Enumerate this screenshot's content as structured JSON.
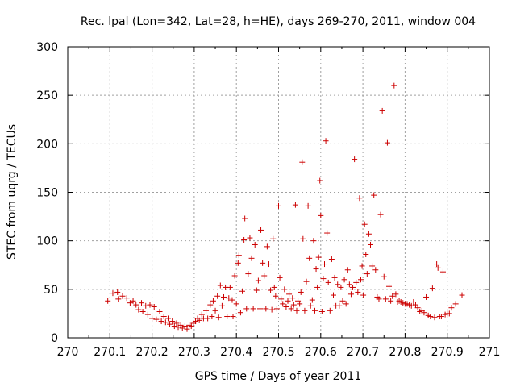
{
  "chart_data": {
    "type": "scatter",
    "title": "Rec. lpal (Lon=342, Lat=28, h=HE), days 269-270, 2011, window 004",
    "xlabel": "GPS time / Days of year 2011",
    "ylabel": "STEC from uqrg / TECUs",
    "xlim": [
      270,
      271
    ],
    "ylim": [
      0,
      300
    ],
    "x_ticks": [
      270,
      270.1,
      270.2,
      270.3,
      270.4,
      270.5,
      270.6,
      270.7,
      270.8,
      270.9,
      271
    ],
    "x_tick_labels": [
      "270",
      "270.1",
      "270.2",
      "270.3",
      "270.4",
      "270.5",
      "270.6",
      "270.7",
      "270.8",
      "270.9",
      "271"
    ],
    "y_ticks": [
      0,
      50,
      100,
      150,
      200,
      250,
      300
    ],
    "y_tick_labels": [
      "0",
      "50",
      "100",
      "150",
      "200",
      "250",
      "300"
    ],
    "grid": true,
    "marker": "+",
    "color": "#cc0000",
    "points": [
      [
        270.095,
        38
      ],
      [
        270.107,
        46
      ],
      [
        270.118,
        47
      ],
      [
        270.12,
        40
      ],
      [
        270.13,
        43
      ],
      [
        270.14,
        41
      ],
      [
        270.148,
        36
      ],
      [
        270.155,
        38
      ],
      [
        270.162,
        34
      ],
      [
        270.168,
        29
      ],
      [
        270.175,
        36
      ],
      [
        270.178,
        27
      ],
      [
        270.185,
        33
      ],
      [
        270.19,
        24
      ],
      [
        270.195,
        34
      ],
      [
        270.2,
        20
      ],
      [
        270.205,
        32
      ],
      [
        270.21,
        19
      ],
      [
        270.218,
        27
      ],
      [
        270.222,
        17
      ],
      [
        270.228,
        22
      ],
      [
        270.232,
        16
      ],
      [
        270.238,
        20
      ],
      [
        270.242,
        14
      ],
      [
        270.248,
        17
      ],
      [
        270.253,
        12
      ],
      [
        270.258,
        15
      ],
      [
        270.262,
        11
      ],
      [
        270.268,
        13
      ],
      [
        270.272,
        10
      ],
      [
        270.278,
        12
      ],
      [
        270.283,
        9
      ],
      [
        270.288,
        13
      ],
      [
        270.293,
        12
      ],
      [
        270.298,
        15
      ],
      [
        270.303,
        17
      ],
      [
        270.308,
        20
      ],
      [
        270.312,
        18
      ],
      [
        270.318,
        24
      ],
      [
        270.322,
        20
      ],
      [
        270.328,
        28
      ],
      [
        270.332,
        20
      ],
      [
        270.338,
        34
      ],
      [
        270.342,
        22
      ],
      [
        270.345,
        38
      ],
      [
        270.35,
        28
      ],
      [
        270.355,
        43
      ],
      [
        270.358,
        21
      ],
      [
        270.362,
        54
      ],
      [
        270.366,
        33
      ],
      [
        270.37,
        42
      ],
      [
        270.374,
        52
      ],
      [
        270.378,
        22
      ],
      [
        270.382,
        41
      ],
      [
        270.385,
        52
      ],
      [
        270.39,
        39
      ],
      [
        270.392,
        22
      ],
      [
        270.396,
        64
      ],
      [
        270.4,
        35
      ],
      [
        270.404,
        77
      ],
      [
        270.406,
        85
      ],
      [
        270.41,
        26
      ],
      [
        270.414,
        48
      ],
      [
        270.418,
        101
      ],
      [
        270.42,
        123
      ],
      [
        270.424,
        30
      ],
      [
        270.428,
        66
      ],
      [
        270.432,
        103
      ],
      [
        270.436,
        82
      ],
      [
        270.44,
        30
      ],
      [
        270.444,
        96
      ],
      [
        270.448,
        49
      ],
      [
        270.452,
        59
      ],
      [
        270.456,
        30
      ],
      [
        270.458,
        111
      ],
      [
        270.462,
        77
      ],
      [
        270.466,
        64
      ],
      [
        270.47,
        30
      ],
      [
        270.473,
        94
      ],
      [
        270.477,
        76
      ],
      [
        270.481,
        49
      ],
      [
        270.484,
        29
      ],
      [
        270.487,
        102
      ],
      [
        270.49,
        52
      ],
      [
        270.493,
        43
      ],
      [
        270.496,
        30
      ],
      [
        270.5,
        136
      ],
      [
        270.503,
        62
      ],
      [
        270.506,
        40
      ],
      [
        270.51,
        35
      ],
      [
        270.514,
        50
      ],
      [
        270.518,
        32
      ],
      [
        270.522,
        38
      ],
      [
        270.525,
        45
      ],
      [
        270.53,
        30
      ],
      [
        270.533,
        41
      ],
      [
        270.536,
        34
      ],
      [
        270.54,
        137
      ],
      [
        270.543,
        28
      ],
      [
        270.546,
        38
      ],
      [
        270.55,
        35
      ],
      [
        270.553,
        47
      ],
      [
        270.556,
        181
      ],
      [
        270.558,
        102
      ],
      [
        270.562,
        28
      ],
      [
        270.566,
        58
      ],
      [
        270.57,
        136
      ],
      [
        270.573,
        82
      ],
      [
        270.576,
        33
      ],
      [
        270.58,
        39
      ],
      [
        270.583,
        100
      ],
      [
        270.586,
        28
      ],
      [
        270.589,
        71
      ],
      [
        270.592,
        52
      ],
      [
        270.595,
        83
      ],
      [
        270.598,
        162
      ],
      [
        270.6,
        126
      ],
      [
        270.603,
        27
      ],
      [
        270.606,
        61
      ],
      [
        270.609,
        76
      ],
      [
        270.612,
        203
      ],
      [
        270.615,
        108
      ],
      [
        270.618,
        57
      ],
      [
        270.622,
        28
      ],
      [
        270.626,
        81
      ],
      [
        270.63,
        44
      ],
      [
        270.633,
        62
      ],
      [
        270.636,
        33
      ],
      [
        270.64,
        55
      ],
      [
        270.644,
        33
      ],
      [
        270.648,
        52
      ],
      [
        270.652,
        38
      ],
      [
        270.656,
        60
      ],
      [
        270.66,
        35
      ],
      [
        270.664,
        70
      ],
      [
        270.668,
        55
      ],
      [
        270.672,
        45
      ],
      [
        270.676,
        52
      ],
      [
        270.68,
        184
      ],
      [
        270.684,
        57
      ],
      [
        270.688,
        47
      ],
      [
        270.692,
        144
      ],
      [
        270.695,
        60
      ],
      [
        270.698,
        74
      ],
      [
        270.701,
        44
      ],
      [
        270.704,
        117
      ],
      [
        270.707,
        86
      ],
      [
        270.71,
        66
      ],
      [
        270.714,
        107
      ],
      [
        270.718,
        96
      ],
      [
        270.722,
        74
      ],
      [
        270.726,
        147
      ],
      [
        270.73,
        70
      ],
      [
        270.734,
        42
      ],
      [
        270.738,
        40
      ],
      [
        270.742,
        127
      ],
      [
        270.746,
        234
      ],
      [
        270.75,
        63
      ],
      [
        270.754,
        40
      ],
      [
        270.758,
        201
      ],
      [
        270.762,
        53
      ],
      [
        270.766,
        38
      ],
      [
        270.77,
        43
      ],
      [
        270.774,
        260
      ],
      [
        270.778,
        45
      ],
      [
        270.782,
        37
      ],
      [
        270.786,
        38
      ],
      [
        270.79,
        37
      ],
      [
        270.795,
        36
      ],
      [
        270.8,
        35
      ],
      [
        270.805,
        35
      ],
      [
        270.81,
        34
      ],
      [
        270.815,
        33
      ],
      [
        270.82,
        37
      ],
      [
        270.825,
        34
      ],
      [
        270.83,
        31
      ],
      [
        270.835,
        27
      ],
      [
        270.84,
        28
      ],
      [
        270.845,
        26
      ],
      [
        270.85,
        42
      ],
      [
        270.855,
        23
      ],
      [
        270.86,
        22
      ],
      [
        270.865,
        51
      ],
      [
        270.87,
        21
      ],
      [
        270.875,
        76
      ],
      [
        270.878,
        72
      ],
      [
        270.882,
        22
      ],
      [
        270.886,
        22
      ],
      [
        270.89,
        68
      ],
      [
        270.895,
        24
      ],
      [
        270.9,
        25
      ],
      [
        270.905,
        25
      ],
      [
        270.91,
        31
      ],
      [
        270.92,
        35
      ],
      [
        270.935,
        44
      ]
    ]
  }
}
